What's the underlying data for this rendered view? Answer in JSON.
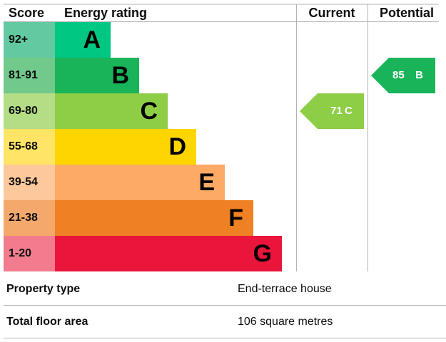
{
  "header": {
    "score": "Score",
    "rating": "Energy rating",
    "current": "Current",
    "potential": "Potential"
  },
  "bands": [
    {
      "score": "92+",
      "letter": "A"
    },
    {
      "score": "81-91",
      "letter": "B"
    },
    {
      "score": "69-80",
      "letter": "C"
    },
    {
      "score": "55-68",
      "letter": "D"
    },
    {
      "score": "39-54",
      "letter": "E"
    },
    {
      "score": "21-38",
      "letter": "F"
    },
    {
      "score": "1-20",
      "letter": "G"
    }
  ],
  "current": {
    "value": 71,
    "letter": "C"
  },
  "potential": {
    "value": 85,
    "letter": "B"
  },
  "table": {
    "rows": [
      [
        "Property type",
        "End-terrace house"
      ],
      [
        "Total floor area",
        "106 square metres"
      ]
    ]
  }
}
